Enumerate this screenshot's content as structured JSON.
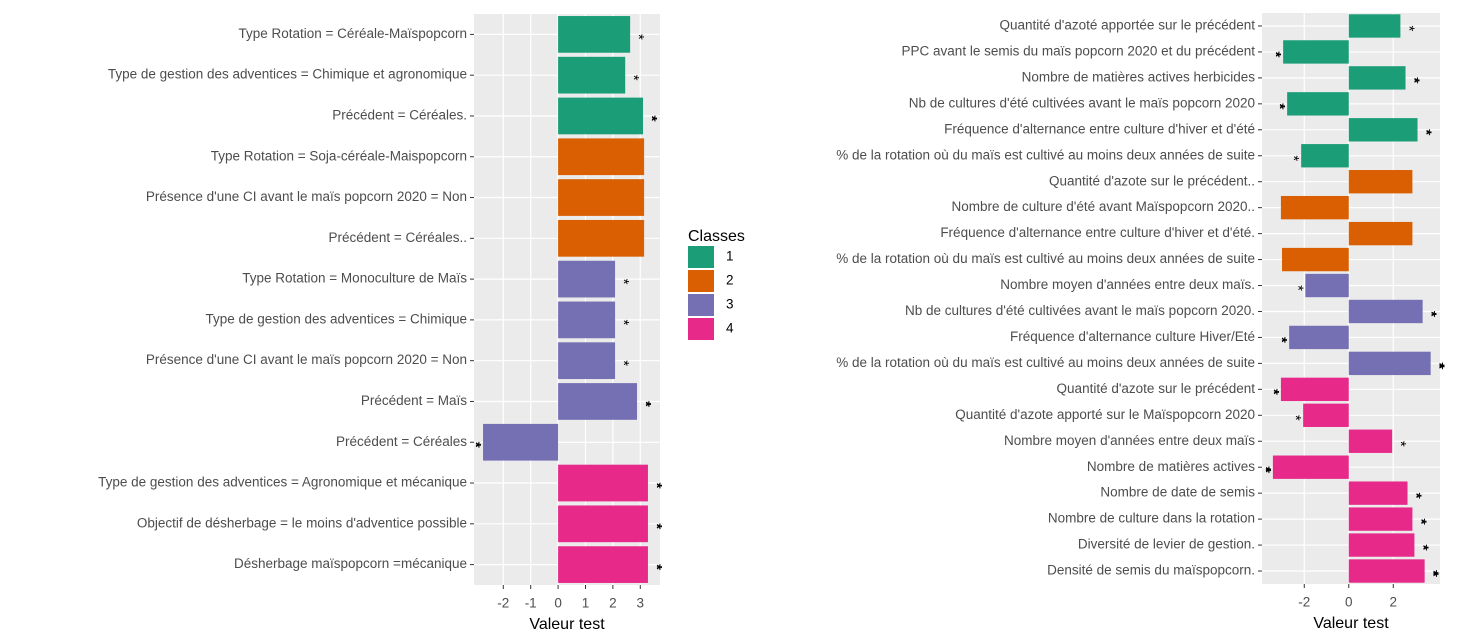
{
  "legend": {
    "title": "Classes",
    "entries": [
      {
        "name": "1",
        "color": "#1b9e77"
      },
      {
        "name": "2",
        "color": "#d95f02"
      },
      {
        "name": "3",
        "color": "#7570b3"
      },
      {
        "name": "4",
        "color": "#e7298a"
      }
    ]
  },
  "chart_data": [
    {
      "type": "barh",
      "xlabel": "Valeur test",
      "categories": [
        "Type Rotation = Céréale-Maïspopcorn",
        "Type de gestion des adventices =  Chimique et agronomique",
        "Précédent = Céréales.",
        "Type Rotation =  Soja-céréale-Maispopcorn",
        "Présence d'une CI avant le maïs popcorn 2020 =  Non",
        "Précédent = Céréales..",
        "Type Rotation = Monoculture de Maïs",
        "Type de gestion des adventices = Chimique",
        "Présence d'une CI avant le maïs popcorn 2020 = Non",
        "Précédent = Maïs",
        "Précédent = Céréales",
        "Type de gestion des adventices =  Agronomique et mécanique",
        "Objectif de désherbage = le moins d'adventice possible",
        "Désherbage maïspopcorn =mécanique"
      ],
      "values": [
        2.63,
        2.45,
        3.1,
        3.14,
        3.14,
        3.14,
        2.08,
        2.08,
        2.08,
        2.88,
        -2.74,
        3.28,
        3.28,
        3.28
      ],
      "classes": [
        "1",
        "1",
        "1",
        "2",
        "2",
        "2",
        "3",
        "3",
        "3",
        "3",
        "3",
        "4",
        "4",
        "4"
      ],
      "significance": [
        "*",
        "*",
        "**",
        null,
        null,
        null,
        "*",
        "*",
        "*",
        "**",
        "**",
        "**",
        "**",
        "**"
      ],
      "xlim": [
        -3.07,
        3.72
      ],
      "xticks": [
        -2,
        -1,
        0,
        1,
        2,
        3
      ],
      "grid": true
    },
    {
      "type": "barh",
      "xlabel": "Valeur test",
      "categories": [
        "Quantité d'azoté apportée sur le précédent",
        "PPC avant le semis du maïs popcorn 2020 et du précédent",
        "Nombre de matières actives herbicides",
        "Nb de cultures d'été cultivées avant le maïs popcorn 2020",
        "Fréquence d'alternance entre culture d'hiver et d'été",
        "% de la rotation où du maïs est cultivé au moins deux années de suite",
        "Quantité d'azote sur le précédent..",
        "Nombre de culture d'été avant Maïspopcorn 2020..",
        "Fréquence d'alternance entre culture d'hiver et d'été.",
        "% de la rotation où du maïs est cultivé au moins deux années de suite",
        "Nombre moyen d'années entre deux maïs.",
        "Nb de cultures d'été cultivées avant le maïs popcorn 2020.",
        "Fréquence d'alternance culture Hiver/Eté",
        "% de la rotation où du maïs est cultivé au moins deux années de suite",
        "Quantité d'azote sur le précédent",
        "Quantité d'azote apporté sur le Maïspopcorn 2020",
        "Nombre moyen d'années entre deux maïs",
        "Nombre de matières actives",
        "Nombre de date de semis",
        "Nombre de culture dans la rotation",
        "Diversité de levier de gestion.",
        "Densité de semis du maïspopcorn."
      ],
      "values": [
        2.32,
        -2.95,
        2.55,
        -2.77,
        3.09,
        -2.14,
        2.86,
        -3.05,
        2.86,
        -3.0,
        -1.95,
        3.32,
        -2.68,
        3.68,
        -3.05,
        -2.05,
        1.95,
        -3.41,
        2.64,
        2.86,
        2.95,
        3.41
      ],
      "classes": [
        "1",
        "1",
        "1",
        "1",
        "1",
        "1",
        "2",
        "2",
        "2",
        "2",
        "3",
        "3",
        "3",
        "3",
        "4",
        "4",
        "4",
        "4",
        "4",
        "4",
        "4",
        "4"
      ],
      "significance": [
        "*",
        "**",
        "**",
        "**",
        "**",
        "*",
        null,
        null,
        null,
        null,
        "*",
        "**",
        "**",
        "***",
        "**",
        "*",
        "*",
        "***",
        "**",
        "**",
        "**",
        "***"
      ],
      "xlim": [
        -3.9,
        4.1
      ],
      "xticks": [
        -2,
        0,
        2
      ],
      "grid": true
    }
  ]
}
